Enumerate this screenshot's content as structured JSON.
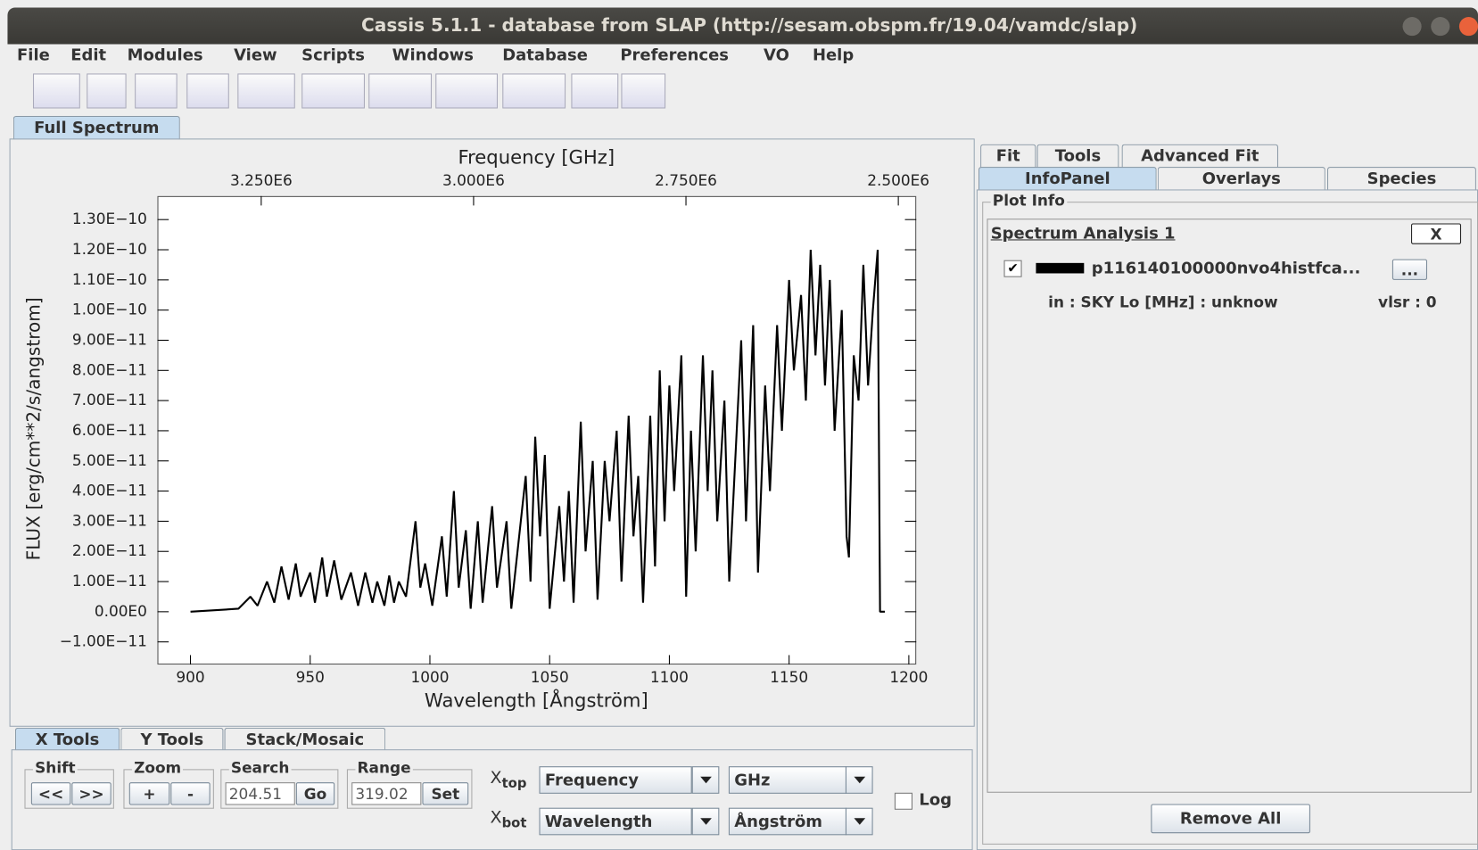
{
  "window": {
    "title": "Cassis 5.1.1 - database from SLAP (http://sesam.obspm.fr/19.04/vamdc/slap)"
  },
  "menu": [
    "File",
    "Edit",
    "Modules",
    "View",
    "Scripts",
    "Windows",
    "Database",
    "Preferences",
    "VO",
    "Help"
  ],
  "main_tab": "Full Spectrum",
  "chart_data": {
    "type": "line",
    "x2label": "Frequency [GHz]",
    "xlabel": "Wavelength [Ångström]",
    "ylabel": "FLUX [erg/cm**2/s/angstrom]",
    "xlim": [
      886.2,
      1203.1
    ],
    "xticks": [
      900,
      950,
      1000,
      1050,
      1100,
      1150,
      1200
    ],
    "x2lim": [
      3372200,
      2478900
    ],
    "x2ticks": [
      {
        "value": 3250000,
        "label": "3.250E6"
      },
      {
        "value": 3000000,
        "label": "3.000E6"
      },
      {
        "value": 2750000,
        "label": "2.750E6"
      },
      {
        "value": 2500000,
        "label": "2.500E6"
      }
    ],
    "ylim": [
      -1.75e-11,
      1.378e-10
    ],
    "yticks": [
      {
        "value": 1.3e-10,
        "label": "1.30E−10"
      },
      {
        "value": 1.2e-10,
        "label": "1.20E−10"
      },
      {
        "value": 1.1e-10,
        "label": "1.10E−10"
      },
      {
        "value": 1e-10,
        "label": "1.00E−10"
      },
      {
        "value": 9e-11,
        "label": "9.00E−11"
      },
      {
        "value": 8e-11,
        "label": "8.00E−11"
      },
      {
        "value": 7e-11,
        "label": "7.00E−11"
      },
      {
        "value": 6e-11,
        "label": "6.00E−11"
      },
      {
        "value": 5e-11,
        "label": "5.00E−11"
      },
      {
        "value": 4e-11,
        "label": "4.00E−11"
      },
      {
        "value": 3e-11,
        "label": "3.00E−11"
      },
      {
        "value": 2e-11,
        "label": "2.00E−11"
      },
      {
        "value": 1e-11,
        "label": "1.00E−11"
      },
      {
        "value": 0,
        "label": "0.00E0"
      },
      {
        "value": -1e-11,
        "label": "−1.00E−11"
      }
    ],
    "color": "#000000",
    "x": [
      900,
      920,
      925,
      928,
      932,
      935,
      938,
      941,
      944,
      946,
      950,
      952,
      955,
      957,
      960,
      963,
      967,
      970,
      973,
      976,
      978,
      981,
      983,
      985,
      987,
      990,
      994,
      996,
      998,
      1001,
      1005,
      1007,
      1010,
      1012,
      1015,
      1017,
      1020,
      1022,
      1026,
      1028,
      1032,
      1034,
      1040,
      1042,
      1044,
      1046,
      1048,
      1050,
      1054,
      1056,
      1058,
      1060,
      1063,
      1065,
      1068,
      1070,
      1073,
      1075,
      1078,
      1080,
      1083,
      1085,
      1087,
      1089,
      1092,
      1094,
      1096,
      1098,
      1100,
      1102,
      1105,
      1107,
      1109,
      1111,
      1114,
      1116,
      1118,
      1120,
      1123,
      1125,
      1130,
      1132,
      1135,
      1137,
      1140,
      1142,
      1145,
      1147,
      1150,
      1152,
      1155,
      1157,
      1159,
      1161,
      1163,
      1165,
      1167,
      1169,
      1172,
      1174,
      1175,
      1177,
      1179,
      1181,
      1183,
      1185,
      1187,
      1188,
      1190
    ],
    "values": [
      0,
      1e-12,
      5e-12,
      2e-12,
      1e-11,
      3e-12,
      1.5e-11,
      4e-12,
      1.6e-11,
      5e-12,
      1.3e-11,
      3e-12,
      1.8e-11,
      5e-12,
      1.7e-11,
      4e-12,
      1.3e-11,
      2e-12,
      1.3e-11,
      3e-12,
      1e-11,
      2e-12,
      1.2e-11,
      3e-12,
      1e-11,
      5e-12,
      3e-11,
      8e-12,
      1.6e-11,
      2e-12,
      2.5e-11,
      5e-12,
      4e-11,
      8e-12,
      2.7e-11,
      1e-12,
      3e-11,
      3e-12,
      3.5e-11,
      8e-12,
      3e-11,
      1e-12,
      4.5e-11,
      1e-11,
      5.8e-11,
      2.5e-11,
      5.2e-11,
      1e-12,
      3.5e-11,
      1e-11,
      4e-11,
      3e-12,
      6.3e-11,
      2e-11,
      5e-11,
      4e-12,
      5e-11,
      3e-11,
      6e-11,
      1e-11,
      6.5e-11,
      2.5e-11,
      4.5e-11,
      3e-12,
      6.5e-11,
      1.5e-11,
      8e-11,
      3e-11,
      7.5e-11,
      4e-11,
      8.5e-11,
      5e-12,
      6e-11,
      2e-11,
      8.5e-11,
      4e-11,
      8e-11,
      3e-11,
      7e-11,
      1e-11,
      9e-11,
      3e-11,
      9.5e-11,
      1.3e-11,
      7.5e-11,
      4e-11,
      9.5e-11,
      6e-11,
      1.1e-10,
      8e-11,
      1.05e-10,
      7e-11,
      1.2e-10,
      8.5e-11,
      1.15e-10,
      7.5e-11,
      1.1e-10,
      6e-11,
      1e-10,
      2.5e-11,
      1.8e-11,
      8.5e-11,
      7e-11,
      1.15e-10,
      7.5e-11,
      1e-10,
      1.2e-10,
      0,
      0
    ]
  },
  "right_panel": {
    "tabs_top": [
      "Fit",
      "Tools",
      "Advanced Fit"
    ],
    "tabs_bottom": [
      "InfoPanel",
      "Overlays",
      "Species"
    ],
    "group": "Plot Info",
    "analysis": "Spectrum Analysis 1",
    "close": "X",
    "file": "p116140100000nvo4histfca...",
    "more": "...",
    "info": "in : SKY Lo [MHz] : unknow",
    "vlsr": "vlsr : 0",
    "remove": "Remove All"
  },
  "bottom_panel": {
    "tabs": [
      "X Tools",
      "Y Tools",
      "Stack/Mosaic"
    ],
    "shift": {
      "label": "Shift",
      "buttons": [
        "<<",
        ">>"
      ]
    },
    "zoom": {
      "label": "Zoom",
      "buttons": [
        "+",
        "-"
      ]
    },
    "search": {
      "label": "Search",
      "value": 204.51,
      "button": "Go"
    },
    "range": {
      "label": "Range",
      "value": 319.02,
      "button": "Set"
    },
    "xtop": {
      "label": "X",
      "sub": "top",
      "axis": "Frequency",
      "unit": "GHz"
    },
    "xbot": {
      "label": "X",
      "sub": "bot",
      "axis": "Wavelength",
      "unit": "Ångström"
    },
    "log": "Log"
  }
}
